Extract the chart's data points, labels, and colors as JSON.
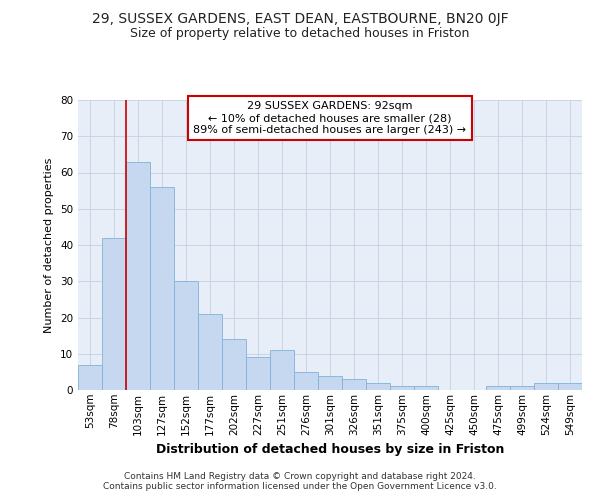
{
  "title": "29, SUSSEX GARDENS, EAST DEAN, EASTBOURNE, BN20 0JF",
  "subtitle": "Size of property relative to detached houses in Friston",
  "xlabel": "Distribution of detached houses by size in Friston",
  "ylabel": "Number of detached properties",
  "categories": [
    "53sqm",
    "78sqm",
    "103sqm",
    "127sqm",
    "152sqm",
    "177sqm",
    "202sqm",
    "227sqm",
    "251sqm",
    "276sqm",
    "301sqm",
    "326sqm",
    "351sqm",
    "375sqm",
    "400sqm",
    "425sqm",
    "450sqm",
    "475sqm",
    "499sqm",
    "524sqm",
    "549sqm"
  ],
  "values": [
    7,
    42,
    63,
    56,
    30,
    21,
    14,
    9,
    11,
    5,
    4,
    3,
    2,
    1,
    1,
    0,
    0,
    1,
    1,
    2,
    2
  ],
  "bar_color": "#c5d8f0",
  "bar_edge_color": "#7fb3d8",
  "vline_x_index": 2,
  "vline_color": "#cc0000",
  "annotation_text": "29 SUSSEX GARDENS: 92sqm\n← 10% of detached houses are smaller (28)\n89% of semi-detached houses are larger (243) →",
  "annotation_box_facecolor": "#ffffff",
  "annotation_box_edgecolor": "#cc0000",
  "ylim": [
    0,
    80
  ],
  "yticks": [
    0,
    10,
    20,
    30,
    40,
    50,
    60,
    70,
    80
  ],
  "grid_color": "#c8d4e8",
  "background_color": "#e8eef8",
  "footer_line1": "Contains HM Land Registry data © Crown copyright and database right 2024.",
  "footer_line2": "Contains public sector information licensed under the Open Government Licence v3.0.",
  "title_fontsize": 10,
  "subtitle_fontsize": 9,
  "xlabel_fontsize": 9,
  "ylabel_fontsize": 8,
  "tick_fontsize": 7.5,
  "annotation_fontsize": 8,
  "footer_fontsize": 6.5
}
